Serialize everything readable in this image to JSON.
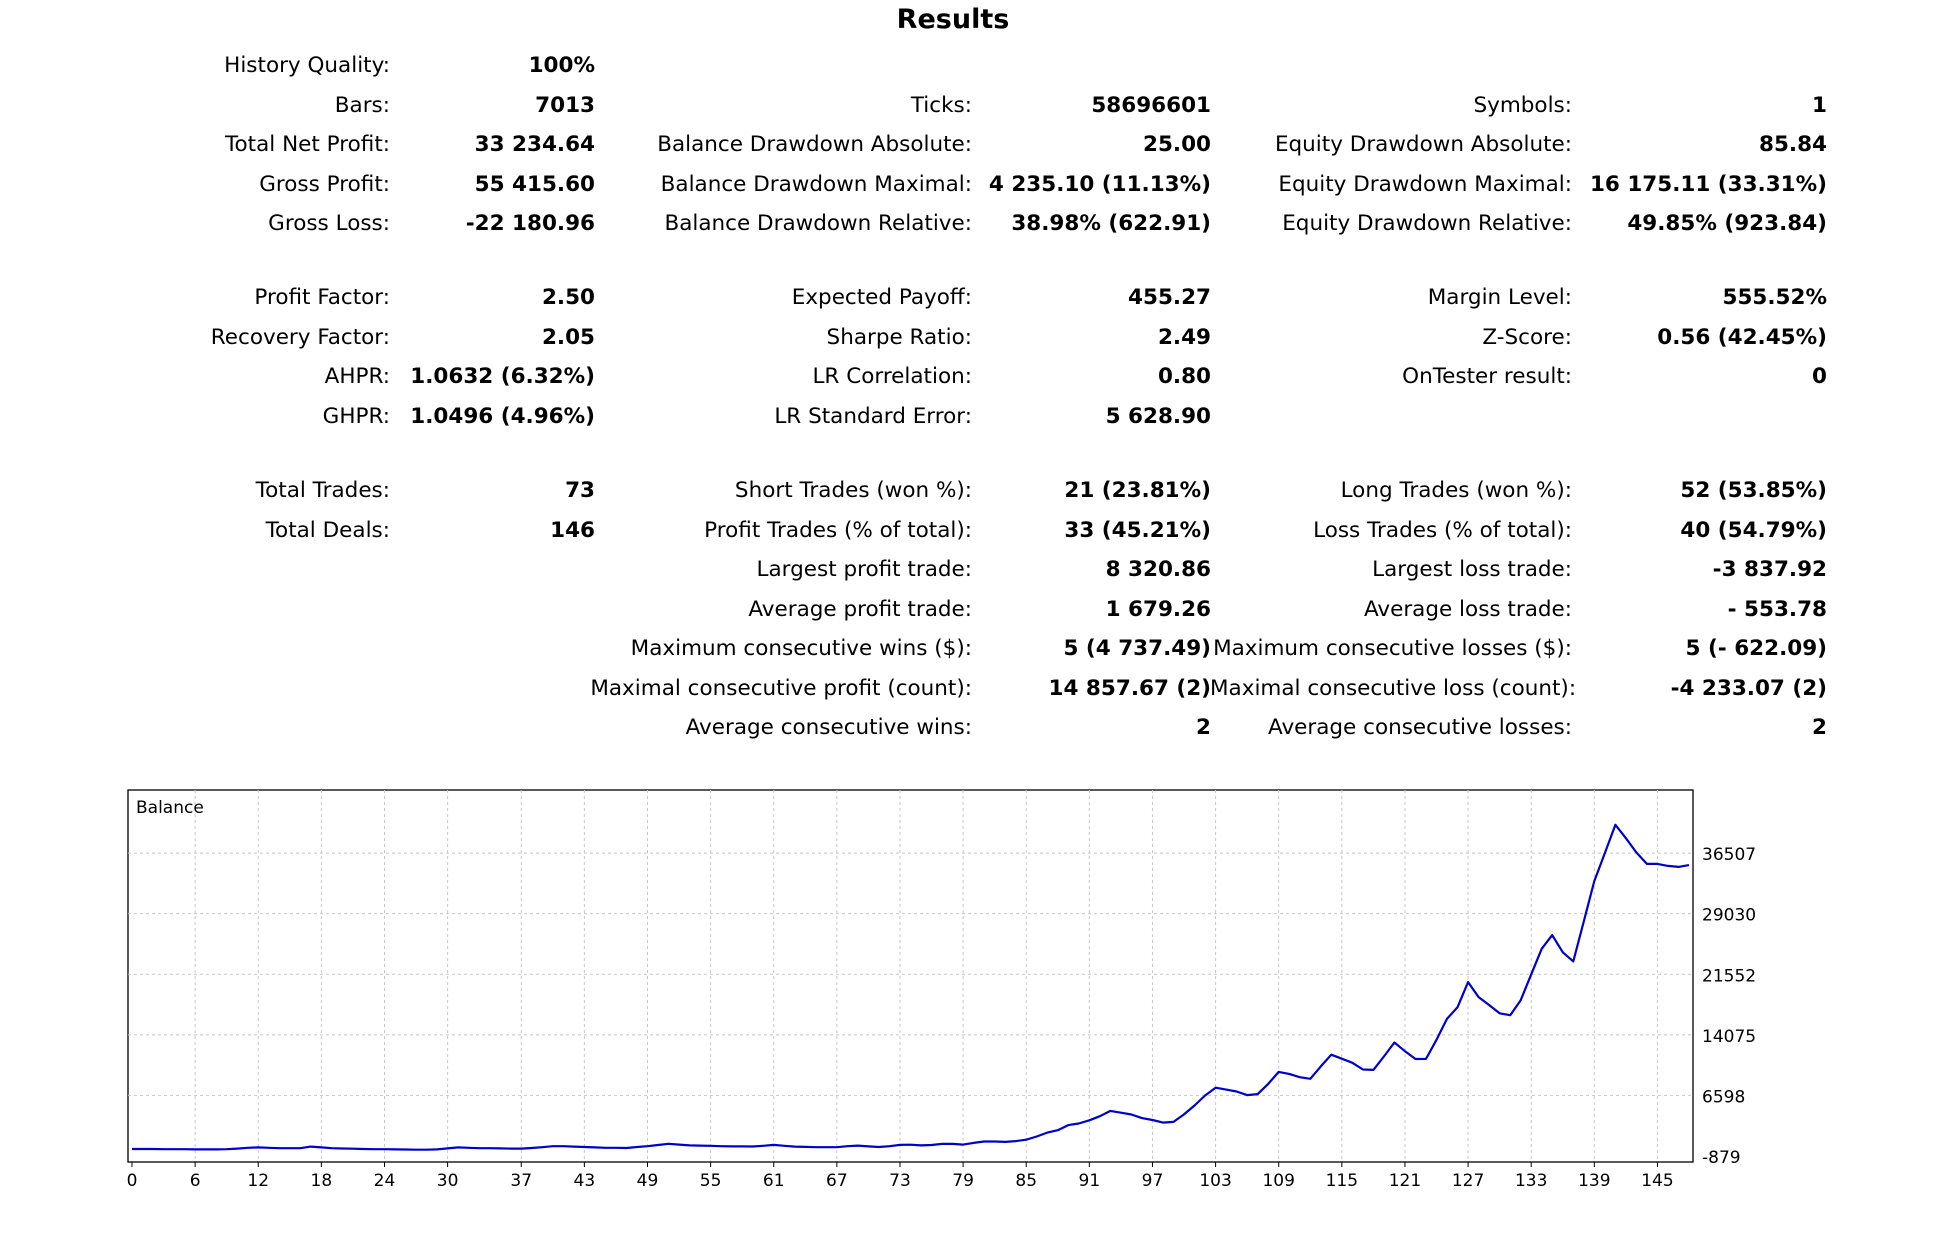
{
  "title": "Results",
  "history_quality": {
    "label": "History Quality:",
    "value": "100%"
  },
  "rows": [
    {
      "c1": {
        "label": "Bars:",
        "value": "7013"
      },
      "c2": {
        "label": "Ticks:",
        "value": "58696601"
      },
      "c3": {
        "label": "Symbols:",
        "value": "1"
      }
    },
    {
      "c1": {
        "label": "Total Net Profit:",
        "value": "33 234.64"
      },
      "c2": {
        "label": "Balance Drawdown Absolute:",
        "value": "25.00"
      },
      "c3": {
        "label": "Equity Drawdown Absolute:",
        "value": "85.84"
      }
    },
    {
      "c1": {
        "label": "Gross Profit:",
        "value": "55 415.60"
      },
      "c2": {
        "label": "Balance Drawdown Maximal:",
        "value": "4 235.10 (11.13%)"
      },
      "c3": {
        "label": "Equity Drawdown Maximal:",
        "value": "16 175.11 (33.31%)"
      }
    },
    {
      "c1": {
        "label": "Gross Loss:",
        "value": "-22 180.96"
      },
      "c2": {
        "label": "Balance Drawdown Relative:",
        "value": "38.98% (622.91)"
      },
      "c3": {
        "label": "Equity Drawdown Relative:",
        "value": "49.85% (923.84)"
      }
    },
    {
      "c1": {
        "label": "Profit Factor:",
        "value": "2.50"
      },
      "c2": {
        "label": "Expected Payoff:",
        "value": "455.27"
      },
      "c3": {
        "label": "Margin Level:",
        "value": "555.52%"
      }
    },
    {
      "c1": {
        "label": "Recovery Factor:",
        "value": "2.05"
      },
      "c2": {
        "label": "Sharpe Ratio:",
        "value": "2.49"
      },
      "c3": {
        "label": "Z-Score:",
        "value": "0.56 (42.45%)"
      }
    },
    {
      "c1": {
        "label": "AHPR:",
        "value": "1.0632 (6.32%)"
      },
      "c2": {
        "label": "LR Correlation:",
        "value": "0.80"
      },
      "c3": {
        "label": "OnTester result:",
        "value": "0"
      }
    },
    {
      "c1": {
        "label": "GHPR:",
        "value": "1.0496 (4.96%)"
      },
      "c2": {
        "label": "LR Standard Error:",
        "value": "5 628.90"
      },
      "c3": {
        "label": "",
        "value": ""
      }
    },
    {
      "c1": {
        "label": "Total Trades:",
        "value": "73"
      },
      "c2": {
        "label": "Short Trades (won %):",
        "value": "21 (23.81%)"
      },
      "c3": {
        "label": "Long Trades (won %):",
        "value": "52 (53.85%)"
      }
    },
    {
      "c1": {
        "label": "Total Deals:",
        "value": "146"
      },
      "c2": {
        "label": "Profit Trades (% of total):",
        "value": "33 (45.21%)"
      },
      "c3": {
        "label": "Loss Trades (% of total):",
        "value": "40 (54.79%)"
      }
    },
    {
      "c1": {
        "label": "",
        "value": ""
      },
      "c2": {
        "label": "Largest profit trade:",
        "value": "8 320.86"
      },
      "c3": {
        "label": "Largest loss trade:",
        "value": "-3 837.92"
      }
    },
    {
      "c1": {
        "label": "",
        "value": ""
      },
      "c2": {
        "label": "Average profit trade:",
        "value": "1 679.26"
      },
      "c3": {
        "label": "Average loss trade:",
        "value": "- 553.78"
      }
    },
    {
      "c1": {
        "label": "",
        "value": ""
      },
      "c2": {
        "label": "Maximum consecutive wins ($):",
        "value": "5 (4 737.49)"
      },
      "c3": {
        "label": "Maximum consecutive losses ($):",
        "value": "5 (- 622.09)"
      }
    },
    {
      "c1": {
        "label": "",
        "value": ""
      },
      "c2": {
        "label": "Maximal consecutive profit (count):",
        "value": "14 857.67 (2)"
      },
      "c3": {
        "label": "Maximal consecutive loss (count):",
        "value": "-4 233.07 (2)"
      }
    },
    {
      "c1": {
        "label": "",
        "value": ""
      },
      "c2": {
        "label": "Average consecutive wins:",
        "value": "2"
      },
      "c3": {
        "label": "Average consecutive losses:",
        "value": "2"
      }
    }
  ],
  "chart_data": {
    "type": "line",
    "title": "Balance",
    "color": "#0000c8",
    "grid": true,
    "xlim": [
      0,
      148
    ],
    "ylim": [
      -879,
      40100
    ],
    "x_ticks": [
      "0",
      "6",
      "12",
      "18",
      "24",
      "30",
      "37",
      "43",
      "49",
      "55",
      "61",
      "67",
      "73",
      "79",
      "85",
      "91",
      "97",
      "103",
      "109",
      "115",
      "121",
      "127",
      "133",
      "139",
      "145"
    ],
    "y_ticks": [
      "-879",
      "6598",
      "14075",
      "21552",
      "29030",
      "36507"
    ],
    "series": [
      {
        "values": [
          [
            0,
            -20
          ],
          [
            1,
            -20
          ],
          [
            2,
            -20
          ],
          [
            3,
            -40
          ],
          [
            4,
            -40
          ],
          [
            5,
            -40
          ],
          [
            6,
            -60
          ],
          [
            7,
            -60
          ],
          [
            8,
            -60
          ],
          [
            9,
            -40
          ],
          [
            10,
            30
          ],
          [
            11,
            130
          ],
          [
            12,
            180
          ],
          [
            13,
            130
          ],
          [
            14,
            80
          ],
          [
            15,
            80
          ],
          [
            16,
            80
          ],
          [
            17,
            280
          ],
          [
            18,
            180
          ],
          [
            19,
            80
          ],
          [
            20,
            50
          ],
          [
            21,
            20
          ],
          [
            22,
            -10
          ],
          [
            23,
            -40
          ],
          [
            24,
            -40
          ],
          [
            25,
            -60
          ],
          [
            26,
            -80
          ],
          [
            27,
            -100
          ],
          [
            28,
            -100
          ],
          [
            29,
            -60
          ],
          [
            30,
            60
          ],
          [
            31,
            180
          ],
          [
            32,
            130
          ],
          [
            33,
            80
          ],
          [
            34,
            80
          ],
          [
            35,
            60
          ],
          [
            36,
            30
          ],
          [
            37,
            30
          ],
          [
            38,
            110
          ],
          [
            39,
            210
          ],
          [
            40,
            330
          ],
          [
            41,
            330
          ],
          [
            42,
            280
          ],
          [
            43,
            230
          ],
          [
            44,
            180
          ],
          [
            45,
            130
          ],
          [
            46,
            130
          ],
          [
            47,
            110
          ],
          [
            48,
            230
          ],
          [
            49,
            330
          ],
          [
            50,
            480
          ],
          [
            51,
            630
          ],
          [
            52,
            530
          ],
          [
            53,
            430
          ],
          [
            54,
            410
          ],
          [
            55,
            380
          ],
          [
            56,
            330
          ],
          [
            57,
            310
          ],
          [
            58,
            310
          ],
          [
            59,
            290
          ],
          [
            60,
            380
          ],
          [
            61,
            490
          ],
          [
            62,
            380
          ],
          [
            63,
            280
          ],
          [
            64,
            250
          ],
          [
            65,
            210
          ],
          [
            66,
            210
          ],
          [
            67,
            210
          ],
          [
            68,
            330
          ],
          [
            69,
            410
          ],
          [
            70,
            310
          ],
          [
            71,
            230
          ],
          [
            72,
            330
          ],
          [
            73,
            490
          ],
          [
            74,
            510
          ],
          [
            75,
            430
          ],
          [
            76,
            480
          ],
          [
            77,
            610
          ],
          [
            78,
            610
          ],
          [
            79,
            530
          ],
          [
            80,
            740
          ],
          [
            81,
            910
          ],
          [
            82,
            910
          ],
          [
            83,
            860
          ],
          [
            84,
            960
          ],
          [
            85,
            1130
          ],
          [
            86,
            1530
          ],
          [
            87,
            2010
          ],
          [
            88,
            2310
          ],
          [
            89,
            2930
          ],
          [
            90,
            3130
          ],
          [
            91,
            3530
          ],
          [
            92,
            4030
          ],
          [
            93,
            4690
          ],
          [
            94,
            4460
          ],
          [
            95,
            4240
          ],
          [
            96,
            3800
          ],
          [
            97,
            3570
          ],
          [
            98,
            3240
          ],
          [
            99,
            3330
          ],
          [
            100,
            4250
          ],
          [
            101,
            5360
          ],
          [
            102,
            6590
          ],
          [
            103,
            7550
          ],
          [
            104,
            7320
          ],
          [
            105,
            7080
          ],
          [
            106,
            6640
          ],
          [
            107,
            6760
          ],
          [
            108,
            8020
          ],
          [
            109,
            9500
          ],
          [
            110,
            9250
          ],
          [
            111,
            8850
          ],
          [
            112,
            8650
          ],
          [
            113,
            10180
          ],
          [
            114,
            11620
          ],
          [
            115,
            11130
          ],
          [
            116,
            10620
          ],
          [
            117,
            9800
          ],
          [
            118,
            9750
          ],
          [
            119,
            11400
          ],
          [
            120,
            13130
          ],
          [
            121,
            12060
          ],
          [
            122,
            11090
          ],
          [
            123,
            11100
          ],
          [
            124,
            13460
          ],
          [
            125,
            16050
          ],
          [
            126,
            17500
          ],
          [
            127,
            20580
          ],
          [
            128,
            18740
          ],
          [
            129,
            17760
          ],
          [
            130,
            16730
          ],
          [
            131,
            16500
          ],
          [
            132,
            18350
          ],
          [
            133,
            21530
          ],
          [
            134,
            24700
          ],
          [
            135,
            26390
          ],
          [
            136,
            24270
          ],
          [
            137,
            23140
          ],
          [
            138,
            28080
          ],
          [
            139,
            33050
          ],
          [
            140,
            36490
          ],
          [
            141,
            40000
          ],
          [
            142,
            38350
          ],
          [
            143,
            36580
          ],
          [
            144,
            35180
          ],
          [
            145,
            35180
          ],
          [
            146,
            34930
          ],
          [
            147,
            34800
          ],
          [
            148,
            35030
          ]
        ]
      }
    ]
  }
}
